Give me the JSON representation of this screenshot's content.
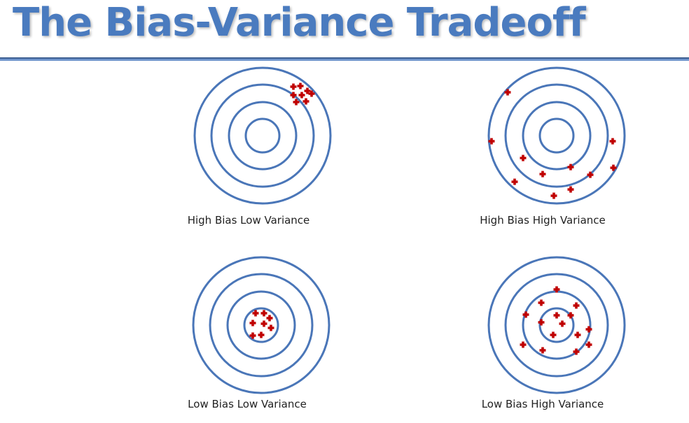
{
  "title": "The Bias-Variance Tradeoff",
  "colors": {
    "ring": "#4a76b8",
    "marker": "#c00000",
    "title": "#4a7bbf"
  },
  "panels": [
    {
      "caption": "High Bias Low Variance",
      "bias": "high",
      "variance": "low"
    },
    {
      "caption": "High Bias High Variance",
      "bias": "high",
      "variance": "high"
    },
    {
      "caption": "Low Bias Low Variance",
      "bias": "low",
      "variance": "low"
    },
    {
      "caption": "Low Bias High Variance",
      "bias": "low",
      "variance": "high"
    }
  ]
}
